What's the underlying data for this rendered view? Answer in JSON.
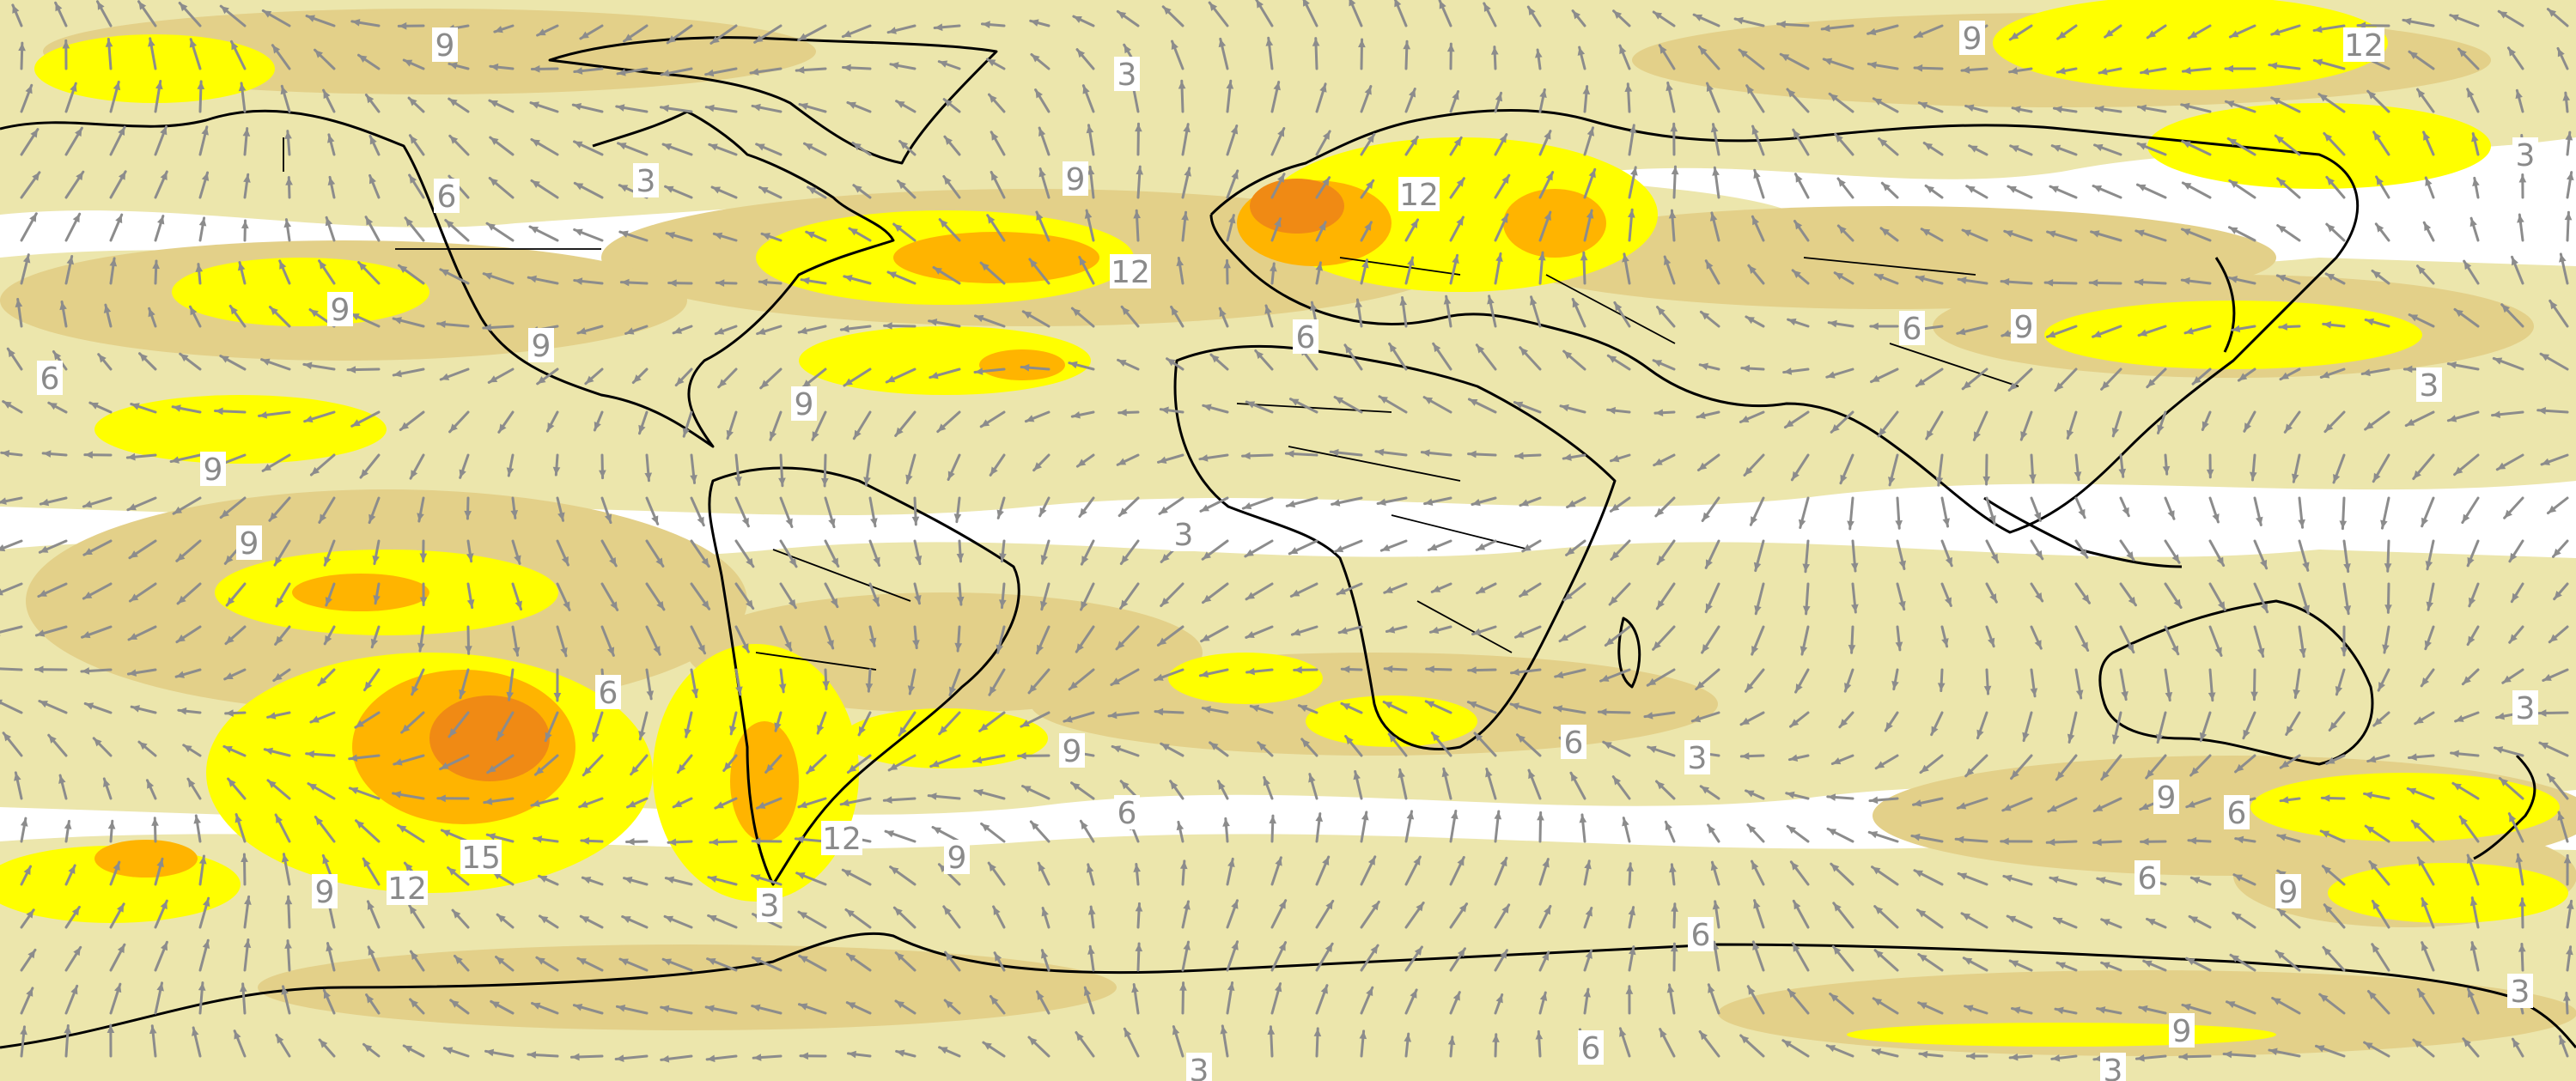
{
  "map": {
    "colors": {
      "background": "#ffffff",
      "level_3_6": "#ece6ac",
      "level_6_9": "#e3d089",
      "level_9_12": "#ffff00",
      "level_12_15": "#ffb400",
      "level_15_plus": "#f08a14",
      "arrows": "#8c8c8c",
      "coastline": "#000000"
    },
    "contour_levels": [
      3,
      6,
      9,
      12,
      15
    ],
    "contour_labels": [
      "9",
      "3",
      "9",
      "12",
      "6",
      "3",
      "9",
      "12",
      "12",
      "9",
      "9",
      "6",
      "6",
      "9",
      "6",
      "3",
      "9",
      "9",
      "9",
      "3",
      "3",
      "6",
      "6",
      "15",
      "9",
      "12",
      "12",
      "9",
      "3",
      "6",
      "9",
      "6",
      "3",
      "9",
      "6",
      "6",
      "9",
      "3",
      "3",
      "6",
      "9",
      "3",
      "3"
    ],
    "vector_field": "wind-arrows"
  }
}
